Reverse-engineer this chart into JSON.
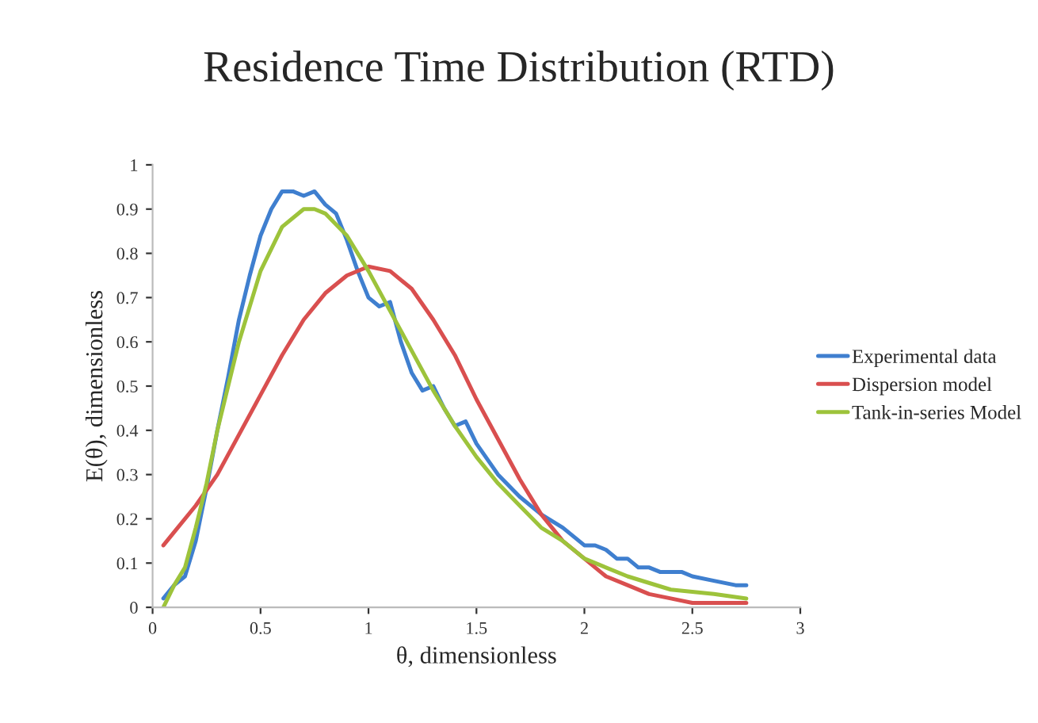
{
  "chart_data": {
    "type": "line",
    "title": "Residence Time Distribution (RTD)",
    "xlabel": "θ, dimensionless",
    "ylabel": "E(θ), dimensionless",
    "xlim": [
      0,
      3
    ],
    "xticks": [
      0,
      0.5,
      1,
      1.5,
      2,
      2.5,
      3
    ],
    "ylim": [
      0,
      1
    ],
    "yticks": [
      0,
      0.1,
      0.2,
      0.3,
      0.4,
      0.5,
      0.6,
      0.7,
      0.8,
      0.9,
      1
    ],
    "grid": false,
    "legend": "right",
    "marker": "none",
    "line_style": "solid",
    "series": [
      {
        "name": "Experimental data",
        "color": "#3f7fcf",
        "x": [
          0.05,
          0.1,
          0.15,
          0.2,
          0.25,
          0.3,
          0.35,
          0.4,
          0.45,
          0.5,
          0.55,
          0.6,
          0.65,
          0.7,
          0.75,
          0.8,
          0.85,
          0.9,
          0.95,
          1.0,
          1.05,
          1.1,
          1.15,
          1.2,
          1.25,
          1.3,
          1.35,
          1.4,
          1.45,
          1.5,
          1.6,
          1.7,
          1.8,
          1.9,
          2.0,
          2.05,
          2.1,
          2.15,
          2.2,
          2.25,
          2.3,
          2.35,
          2.4,
          2.45,
          2.5,
          2.6,
          2.7,
          2.75
        ],
        "values": [
          0.02,
          0.05,
          0.07,
          0.15,
          0.27,
          0.4,
          0.52,
          0.65,
          0.75,
          0.84,
          0.9,
          0.94,
          0.94,
          0.93,
          0.94,
          0.91,
          0.89,
          0.83,
          0.76,
          0.7,
          0.68,
          0.69,
          0.6,
          0.53,
          0.49,
          0.5,
          0.45,
          0.41,
          0.42,
          0.37,
          0.3,
          0.25,
          0.21,
          0.18,
          0.14,
          0.14,
          0.13,
          0.11,
          0.11,
          0.09,
          0.09,
          0.08,
          0.08,
          0.08,
          0.07,
          0.06,
          0.05,
          0.05
        ]
      },
      {
        "name": "Dispersion model",
        "color": "#d94f4f",
        "x": [
          0.05,
          0.1,
          0.2,
          0.3,
          0.4,
          0.5,
          0.6,
          0.7,
          0.8,
          0.9,
          1.0,
          1.1,
          1.2,
          1.3,
          1.4,
          1.5,
          1.6,
          1.7,
          1.8,
          1.9,
          2.0,
          2.1,
          2.2,
          2.3,
          2.4,
          2.5,
          2.6,
          2.75
        ],
        "values": [
          0.14,
          0.17,
          0.23,
          0.3,
          0.39,
          0.48,
          0.57,
          0.65,
          0.71,
          0.75,
          0.77,
          0.76,
          0.72,
          0.65,
          0.57,
          0.47,
          0.38,
          0.29,
          0.21,
          0.15,
          0.11,
          0.07,
          0.05,
          0.03,
          0.02,
          0.01,
          0.01,
          0.01
        ]
      },
      {
        "name": "Tank-in-series Model",
        "color": "#9dc33b",
        "x": [
          0.05,
          0.1,
          0.15,
          0.2,
          0.25,
          0.3,
          0.4,
          0.5,
          0.6,
          0.7,
          0.75,
          0.8,
          0.9,
          1.0,
          1.1,
          1.2,
          1.3,
          1.4,
          1.5,
          1.6,
          1.7,
          1.8,
          1.9,
          2.0,
          2.2,
          2.4,
          2.6,
          2.75
        ],
        "values": [
          0.0,
          0.05,
          0.09,
          0.18,
          0.28,
          0.4,
          0.6,
          0.76,
          0.86,
          0.9,
          0.9,
          0.89,
          0.84,
          0.76,
          0.67,
          0.58,
          0.49,
          0.41,
          0.34,
          0.28,
          0.23,
          0.18,
          0.15,
          0.11,
          0.07,
          0.04,
          0.03,
          0.02
        ]
      }
    ]
  }
}
